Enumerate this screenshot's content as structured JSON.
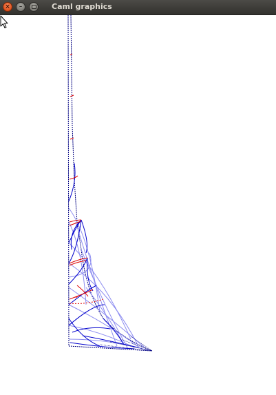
{
  "window": {
    "title": "Caml graphics",
    "buttons": {
      "close_glyph": "×",
      "minimize_glyph": "–"
    }
  },
  "colors": {
    "outline": "#000080",
    "curve_blue": "#0000cc",
    "curve_light": "#8c8cf0",
    "curve_red": "#dd0000",
    "titlebar": "#3c3b37",
    "title_text": "#dfdbd2"
  },
  "icons": {
    "close": "close-icon",
    "minimize": "minimize-icon",
    "maximize": "maximize-icon",
    "cursor": "mouse-pointer-icon"
  }
}
